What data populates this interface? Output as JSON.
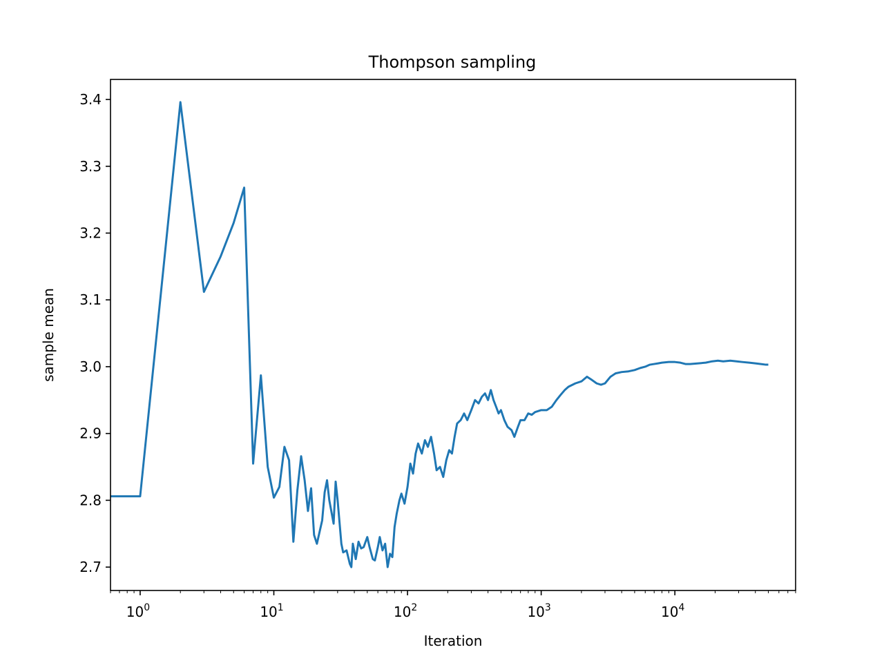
{
  "chart_data": {
    "type": "line",
    "title": "Thompson sampling",
    "xlabel": "Iteration",
    "ylabel": "sample mean",
    "x_scale": "log",
    "xlim": [
      0.6,
      80000
    ],
    "ylim": [
      2.665,
      3.43
    ],
    "grid": false,
    "x_major_ticks": [
      {
        "value": 1,
        "base": "10",
        "exp": "0"
      },
      {
        "value": 10,
        "base": "10",
        "exp": "1"
      },
      {
        "value": 100,
        "base": "10",
        "exp": "2"
      },
      {
        "value": 1000,
        "base": "10",
        "exp": "3"
      },
      {
        "value": 10000,
        "base": "10",
        "exp": "4"
      }
    ],
    "y_ticks": [
      {
        "value": 2.7,
        "label": "2.7"
      },
      {
        "value": 2.8,
        "label": "2.8"
      },
      {
        "value": 2.9,
        "label": "2.9"
      },
      {
        "value": 3.0,
        "label": "3.0"
      },
      {
        "value": 3.1,
        "label": "3.1"
      },
      {
        "value": 3.2,
        "label": "3.2"
      },
      {
        "value": 3.3,
        "label": "3.3"
      },
      {
        "value": 3.4,
        "label": "3.4"
      }
    ],
    "series": [
      {
        "color": "#1f77b4",
        "points": [
          [
            0.6,
            2.806
          ],
          [
            1,
            2.806
          ],
          [
            2,
            3.396
          ],
          [
            3,
            3.112
          ],
          [
            4,
            3.165
          ],
          [
            5,
            3.215
          ],
          [
            6,
            3.268
          ],
          [
            7,
            2.855
          ],
          [
            8,
            2.987
          ],
          [
            9,
            2.85
          ],
          [
            10,
            2.804
          ],
          [
            11,
            2.82
          ],
          [
            12,
            2.88
          ],
          [
            13,
            2.86
          ],
          [
            14,
            2.738
          ],
          [
            15,
            2.815
          ],
          [
            16,
            2.866
          ],
          [
            17,
            2.83
          ],
          [
            18,
            2.784
          ],
          [
            19,
            2.818
          ],
          [
            20,
            2.748
          ],
          [
            21,
            2.735
          ],
          [
            23,
            2.77
          ],
          [
            24,
            2.812
          ],
          [
            25,
            2.83
          ],
          [
            26,
            2.8
          ],
          [
            28,
            2.765
          ],
          [
            29,
            2.828
          ],
          [
            30,
            2.8
          ],
          [
            32,
            2.735
          ],
          [
            33,
            2.722
          ],
          [
            35,
            2.725
          ],
          [
            37,
            2.705
          ],
          [
            38,
            2.7
          ],
          [
            39,
            2.735
          ],
          [
            41,
            2.712
          ],
          [
            43,
            2.738
          ],
          [
            45,
            2.728
          ],
          [
            47,
            2.73
          ],
          [
            50,
            2.745
          ],
          [
            52,
            2.73
          ],
          [
            55,
            2.712
          ],
          [
            57,
            2.71
          ],
          [
            60,
            2.73
          ],
          [
            62,
            2.745
          ],
          [
            65,
            2.725
          ],
          [
            68,
            2.735
          ],
          [
            71,
            2.7
          ],
          [
            74,
            2.72
          ],
          [
            77,
            2.715
          ],
          [
            80,
            2.76
          ],
          [
            83,
            2.78
          ],
          [
            87,
            2.8
          ],
          [
            90,
            2.81
          ],
          [
            95,
            2.795
          ],
          [
            100,
            2.82
          ],
          [
            105,
            2.855
          ],
          [
            110,
            2.84
          ],
          [
            115,
            2.87
          ],
          [
            120,
            2.885
          ],
          [
            128,
            2.87
          ],
          [
            135,
            2.89
          ],
          [
            142,
            2.88
          ],
          [
            150,
            2.895
          ],
          [
            158,
            2.87
          ],
          [
            165,
            2.845
          ],
          [
            175,
            2.85
          ],
          [
            185,
            2.835
          ],
          [
            195,
            2.86
          ],
          [
            205,
            2.875
          ],
          [
            215,
            2.87
          ],
          [
            225,
            2.895
          ],
          [
            235,
            2.915
          ],
          [
            250,
            2.92
          ],
          [
            265,
            2.93
          ],
          [
            280,
            2.92
          ],
          [
            300,
            2.935
          ],
          [
            320,
            2.95
          ],
          [
            340,
            2.945
          ],
          [
            360,
            2.955
          ],
          [
            380,
            2.96
          ],
          [
            400,
            2.95
          ],
          [
            420,
            2.965
          ],
          [
            440,
            2.95
          ],
          [
            460,
            2.94
          ],
          [
            480,
            2.93
          ],
          [
            500,
            2.935
          ],
          [
            530,
            2.92
          ],
          [
            560,
            2.91
          ],
          [
            600,
            2.905
          ],
          [
            630,
            2.895
          ],
          [
            670,
            2.91
          ],
          [
            700,
            2.92
          ],
          [
            750,
            2.92
          ],
          [
            800,
            2.93
          ],
          [
            850,
            2.928
          ],
          [
            900,
            2.932
          ],
          [
            1000,
            2.935
          ],
          [
            1100,
            2.935
          ],
          [
            1200,
            2.94
          ],
          [
            1300,
            2.95
          ],
          [
            1400,
            2.958
          ],
          [
            1500,
            2.965
          ],
          [
            1600,
            2.97
          ],
          [
            1800,
            2.975
          ],
          [
            2000,
            2.978
          ],
          [
            2200,
            2.985
          ],
          [
            2400,
            2.98
          ],
          [
            2600,
            2.975
          ],
          [
            2800,
            2.973
          ],
          [
            3000,
            2.975
          ],
          [
            3300,
            2.985
          ],
          [
            3600,
            2.99
          ],
          [
            4000,
            2.992
          ],
          [
            4500,
            2.993
          ],
          [
            5000,
            2.995
          ],
          [
            5500,
            2.998
          ],
          [
            6000,
            3.0
          ],
          [
            6500,
            3.003
          ],
          [
            7000,
            3.004
          ],
          [
            7500,
            3.005
          ],
          [
            8000,
            3.006
          ],
          [
            9000,
            3.007
          ],
          [
            10000,
            3.007
          ],
          [
            11000,
            3.006
          ],
          [
            12000,
            3.004
          ],
          [
            13000,
            3.004
          ],
          [
            15000,
            3.005
          ],
          [
            17000,
            3.006
          ],
          [
            19000,
            3.008
          ],
          [
            21000,
            3.009
          ],
          [
            23000,
            3.008
          ],
          [
            26000,
            3.009
          ],
          [
            29000,
            3.008
          ],
          [
            32000,
            3.007
          ],
          [
            36000,
            3.006
          ],
          [
            40000,
            3.005
          ],
          [
            44000,
            3.004
          ],
          [
            48000,
            3.003
          ],
          [
            50000,
            3.003
          ]
        ]
      }
    ]
  }
}
